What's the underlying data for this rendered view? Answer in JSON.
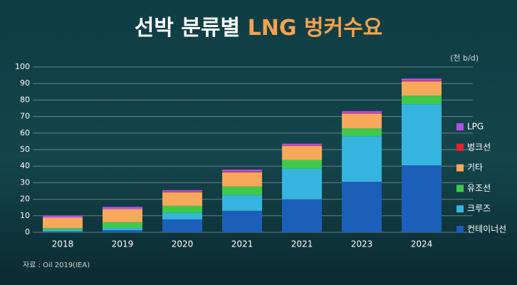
{
  "chart_data": {
    "type": "stacked-bar",
    "title": {
      "main": "선박 분류별",
      "highlight": "LNG 벙커수요"
    },
    "unit": "(천 b/d)",
    "source": "자료 : Oil 2019(IEA)",
    "categories": [
      "2018",
      "2019",
      "2020",
      "2021",
      "2021",
      "2023",
      "2024"
    ],
    "series": [
      {
        "name": "컨테이너선",
        "color": "#1b5fb8",
        "values": [
          0.5,
          1.3,
          7.8,
          13,
          20,
          30.5,
          40.5
        ]
      },
      {
        "name": "크루즈",
        "color": "#36b4e0",
        "values": [
          1,
          1.3,
          3.9,
          9.5,
          18.5,
          27.6,
          37
        ]
      },
      {
        "name": "유조선",
        "color": "#3fc94b",
        "values": [
          1,
          3.5,
          4.3,
          5.2,
          5.2,
          4.7,
          5.2
        ]
      },
      {
        "name": "기타",
        "color": "#f6a85b",
        "values": [
          6.5,
          8,
          8.2,
          8.6,
          8.6,
          9,
          8.6
        ]
      },
      {
        "name": "벙크선",
        "color": "#e8202a",
        "values": [
          0,
          0,
          0.3,
          0.4,
          0.3,
          0.3,
          0.4
        ]
      },
      {
        "name": "LPG",
        "color": "#b44ee8",
        "values": [
          1,
          1.3,
          1,
          1.2,
          1,
          1.2,
          1.3
        ]
      }
    ],
    "ylim": [
      0,
      100
    ],
    "yticks": [
      0,
      10,
      20,
      30,
      40,
      50,
      60,
      70,
      80,
      90,
      100
    ],
    "grid": true
  }
}
